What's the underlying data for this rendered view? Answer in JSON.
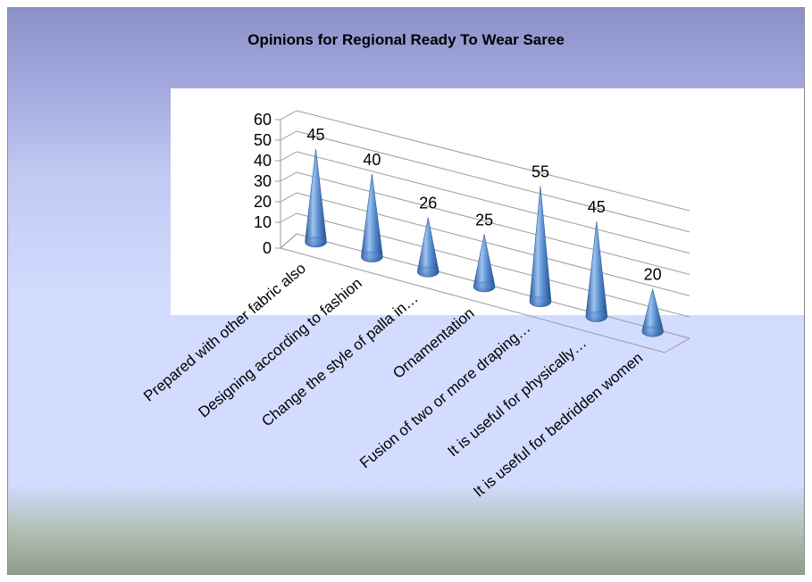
{
  "chart_data": {
    "type": "bar",
    "subtype": "3d-cone",
    "title": "Opinions for Regional Ready To Wear Saree",
    "categories": [
      "Prepared with other fabric also",
      "Designing according to fashion",
      "Change the style of palla in…",
      "Ornamentation",
      "Fusion of two or more draping…",
      "It is useful for physically…",
      "It is useful for bedridden women"
    ],
    "values": [
      45,
      40,
      26,
      25,
      55,
      45,
      20
    ],
    "yticks": [
      "0",
      "10",
      "20",
      "30",
      "40",
      "50",
      "60"
    ],
    "ylim": [
      0,
      60
    ],
    "grid": true,
    "legend": "none",
    "colors": {
      "cone": "#4f81bd",
      "cone_light": "#9cc3f0",
      "cone_dark": "#1f4e8c",
      "grid": "#9a9a9a"
    }
  }
}
